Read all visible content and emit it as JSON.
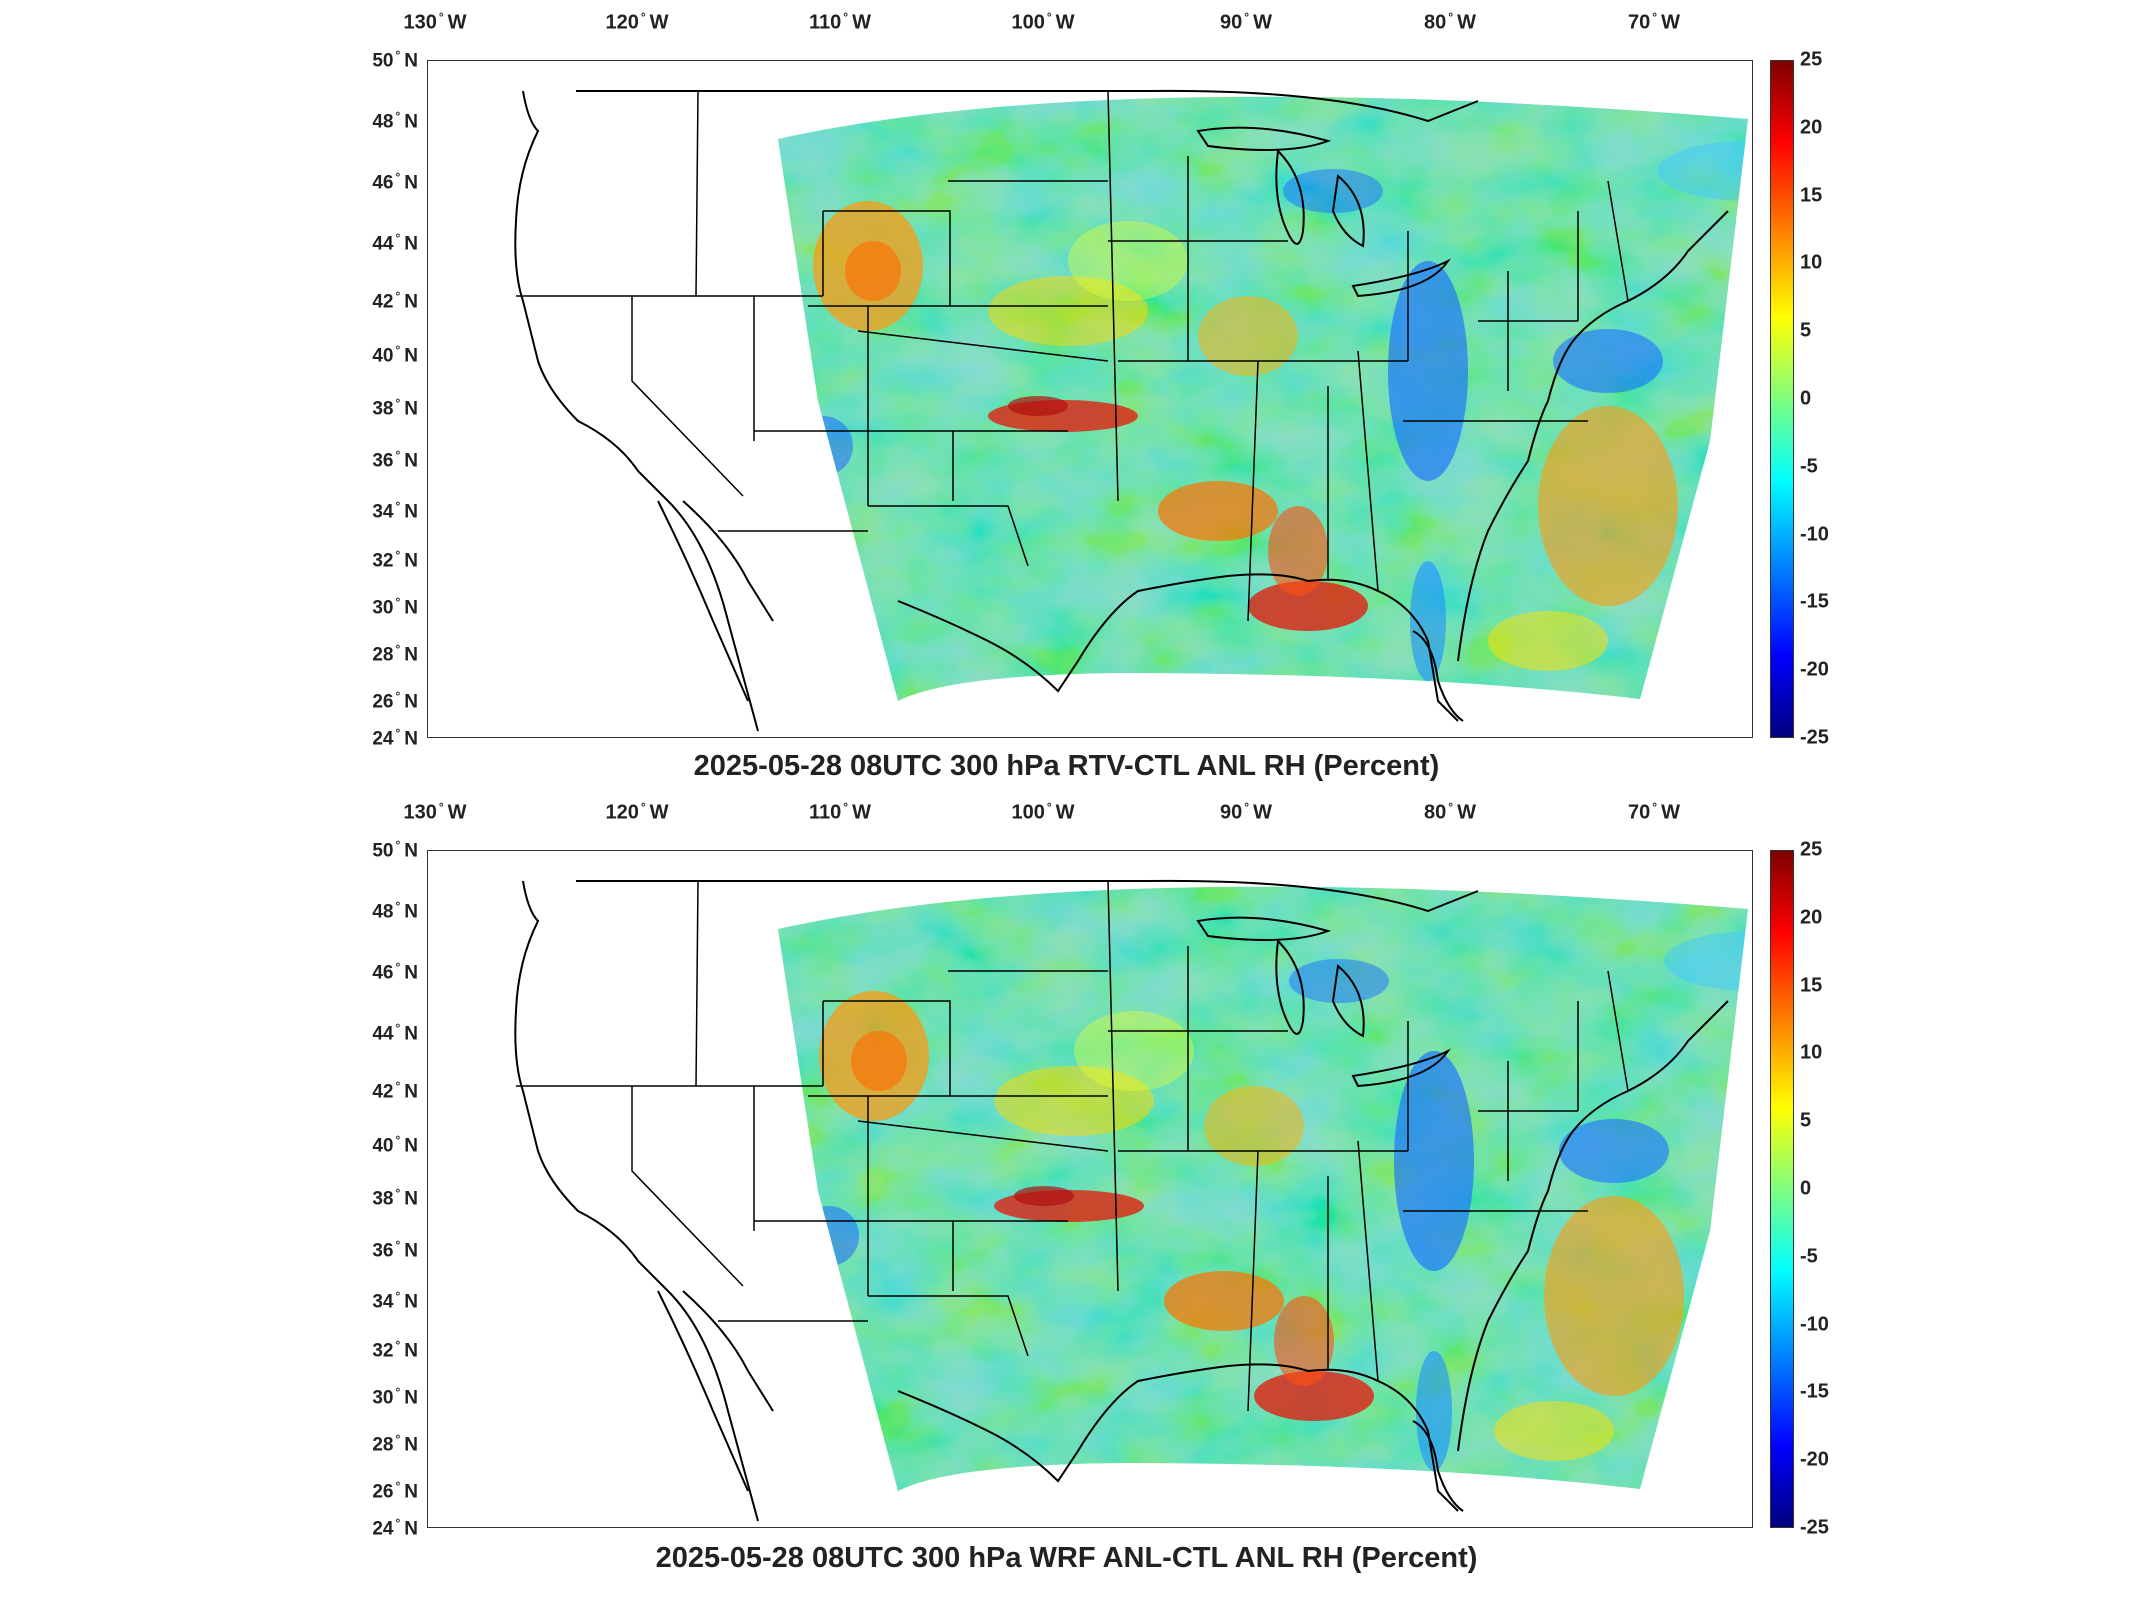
{
  "panels": [
    {
      "title": "2025-05-28 08UTC 300 hPa RTV-CTL ANL RH (Percent)",
      "lon_labels": [
        "130",
        "120",
        "110",
        "100",
        "90",
        "80",
        "70"
      ],
      "lon_suffix": "W",
      "lat_labels": [
        "50",
        "48",
        "46",
        "44",
        "42",
        "40",
        "38",
        "36",
        "34",
        "32",
        "30",
        "28",
        "26",
        "24"
      ],
      "lat_suffix": "N",
      "colorbar_ticks": [
        "25",
        "20",
        "15",
        "10",
        "5",
        "0",
        "-5",
        "-10",
        "-15",
        "-20",
        "-25"
      ]
    },
    {
      "title": "2025-05-28 08UTC 300 hPa WRF ANL-CTL ANL RH (Percent)",
      "lon_labels": [
        "130",
        "120",
        "110",
        "100",
        "90",
        "80",
        "70"
      ],
      "lon_suffix": "W",
      "lat_labels": [
        "50",
        "48",
        "46",
        "44",
        "42",
        "40",
        "38",
        "36",
        "34",
        "32",
        "30",
        "28",
        "26",
        "24"
      ],
      "lat_suffix": "N",
      "colorbar_ticks": [
        "25",
        "20",
        "15",
        "10",
        "5",
        "0",
        "-5",
        "-10",
        "-15",
        "-20",
        "-25"
      ]
    }
  ],
  "colorbar": {
    "min": -25,
    "max": 25,
    "colormap": "jet"
  },
  "colors": {
    "field_base": "#35e6c0",
    "frame": "#333333",
    "coast": "#000000"
  }
}
